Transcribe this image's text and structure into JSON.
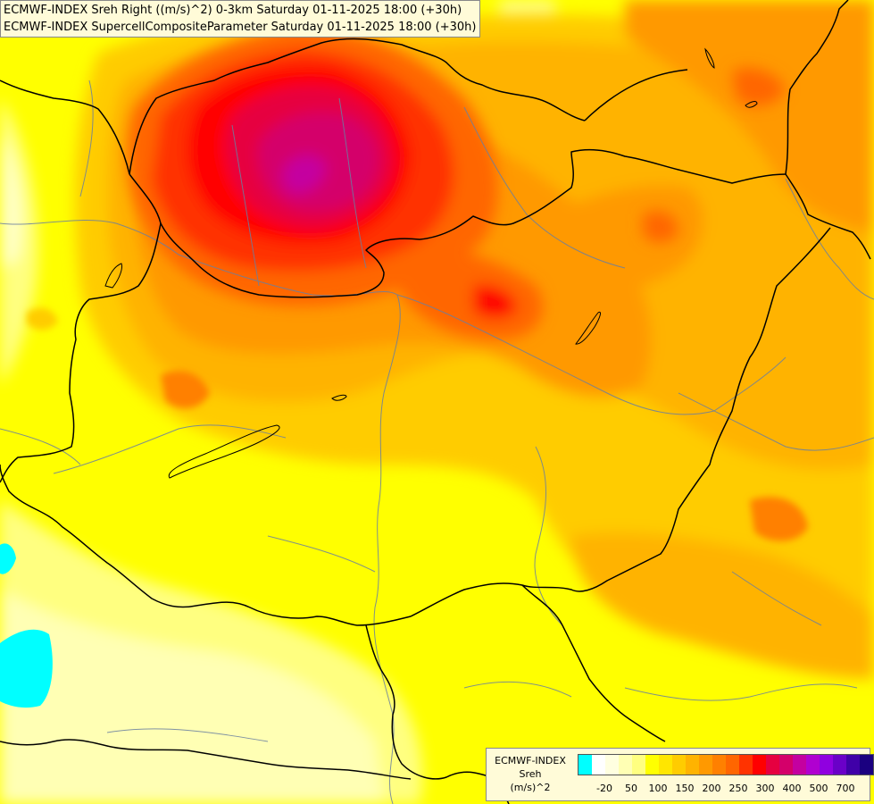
{
  "header": {
    "line1": "ECMWF-INDEX Sreh Right ((m/s)^2) 0-3km Saturday 01-11-2025 18:00 (+30h)",
    "line2": "ECMWF-INDEX SupercellCompositeParameter Saturday 01-11-2025 18:00 (+30h)"
  },
  "legend": {
    "line1": "ECMWF-INDEX",
    "line2": "Sreh",
    "line3": "(m/s)^2",
    "colors": [
      "#00ffff",
      "#ffffff",
      "#ffffe0",
      "#ffffb4",
      "#ffff80",
      "#ffff00",
      "#ffe600",
      "#ffcc00",
      "#ffb300",
      "#ff9900",
      "#ff8000",
      "#ff6600",
      "#ff3300",
      "#ff0000",
      "#e60040",
      "#d4006a",
      "#c400a0",
      "#b000d0",
      "#9000e0",
      "#6a00c8",
      "#4000a8",
      "#1a0080"
    ],
    "labels": [
      {
        "text": "-20",
        "index": 1
      },
      {
        "text": "50",
        "index": 3
      },
      {
        "text": "100",
        "index": 5
      },
      {
        "text": "150",
        "index": 7
      },
      {
        "text": "200",
        "index": 9
      },
      {
        "text": "250",
        "index": 11
      },
      {
        "text": "300",
        "index": 13
      },
      {
        "text": "400",
        "index": 15
      },
      {
        "text": "500",
        "index": 17
      },
      {
        "text": "700",
        "index": 19
      }
    ]
  }
}
